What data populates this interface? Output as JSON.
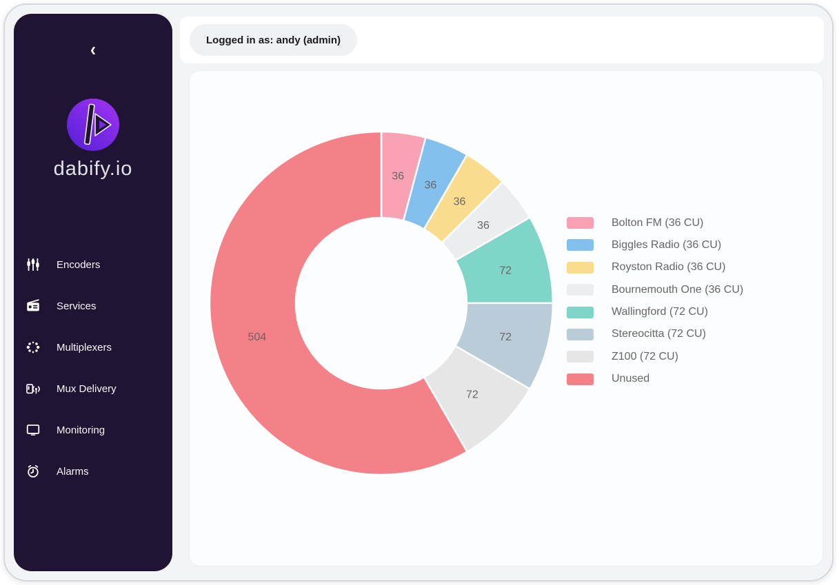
{
  "header": {
    "logged_in_text": "Logged in as: andy (admin)"
  },
  "sidebar": {
    "collapse_glyph": "‹",
    "brand": "dabify.io",
    "items": [
      {
        "label": "Encoders",
        "icon": "equalizer-icon"
      },
      {
        "label": "Services",
        "icon": "radio-icon"
      },
      {
        "label": "Multiplexers",
        "icon": "multiplexer-icon"
      },
      {
        "label": "Mux Delivery",
        "icon": "broadcast-icon"
      },
      {
        "label": "Monitoring",
        "icon": "monitor-icon"
      },
      {
        "label": "Alarms",
        "icon": "alarm-clock-icon"
      }
    ]
  },
  "colors": {
    "sidebar_bg": "#1F1433",
    "page_bg": "#F3F4F6",
    "card_bg": "#FCFDFE",
    "pill_bg": "#F0F1F3",
    "logo_gradient_start": "#9B32F0",
    "logo_gradient_end": "#5B21D9"
  },
  "chart_data": {
    "type": "doughnut",
    "labels": [
      "Bolton FM (36 CU)",
      "Biggles Radio (36 CU)",
      "Royston Radio (36 CU)",
      "Bournemouth One (36 CU)",
      "Wallingford (72 CU)",
      "Stereocitta (72 CU)",
      "Z100 (72 CU)",
      "Unused"
    ],
    "values": [
      36,
      36,
      36,
      36,
      72,
      72,
      72,
      504
    ],
    "data_labels": [
      "36",
      "36",
      "36",
      "36",
      "72",
      "72",
      "72",
      "504"
    ],
    "colors": [
      "#F9A2B4",
      "#83C0EE",
      "#FADC8E",
      "#ECEDEF",
      "#7FD5C7",
      "#B9CCD7",
      "#E6E6E7",
      "#F38187"
    ],
    "border_color": "#FFFFFF",
    "label_color": "#666666",
    "unit": "CU",
    "legend_position": "right",
    "start_angle_deg": -90,
    "direction": "clockwise"
  }
}
